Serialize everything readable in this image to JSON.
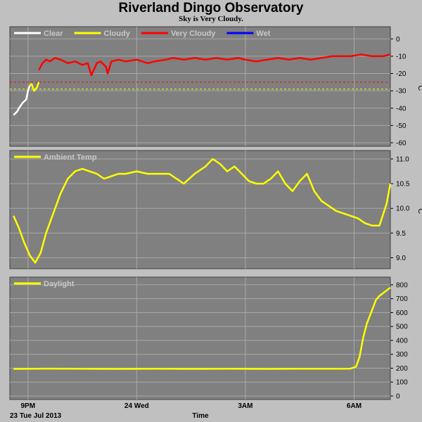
{
  "header": {
    "title": "Riverland Dingo Observatory",
    "subtitle": "Sky is Very Cloudy."
  },
  "footer": {
    "date_label": "23 Tue Jul 2013",
    "axis_title": "Time"
  },
  "colors": {
    "background": "#c0c0c0",
    "panel": "#808080",
    "clear": "#ffffff",
    "cloudy": "#ffff00",
    "very_cloudy": "#ff0000",
    "wet": "#0000ff",
    "ambient": "#ffff00",
    "daylight": "#ffff00"
  },
  "chart_data": [
    {
      "type": "line",
      "title": "",
      "ylabel": "°C",
      "ylim": [
        -60,
        5
      ],
      "yticks": [
        0,
        -10,
        -20,
        -30,
        -40,
        -50,
        -60
      ],
      "xlim": [
        20.5,
        31.0
      ],
      "x_ticks": [
        {
          "x": 21,
          "label": "9PM"
        },
        {
          "x": 24,
          "label": "24 Wed"
        },
        {
          "x": 27,
          "label": "3AM"
        },
        {
          "x": 30,
          "label": "6AM"
        }
      ],
      "grid": true,
      "legend": [
        {
          "name": "Clear",
          "color": "#ffffff"
        },
        {
          "name": "Cloudy",
          "color": "#ffff00"
        },
        {
          "name": "Very Cloudy",
          "color": "#ff0000"
        },
        {
          "name": "Wet",
          "color": "#0000ff"
        }
      ],
      "thresholds": [
        {
          "y": -25,
          "color": "#ff0000"
        },
        {
          "y": -29,
          "color": "#ffff00"
        }
      ],
      "series": [
        {
          "name": "Clear",
          "color": "#ffffff",
          "x": [
            20.6,
            20.7,
            20.75,
            20.85,
            20.95,
            21.0,
            21.05
          ],
          "y": [
            -44,
            -42,
            -40,
            -37,
            -35,
            -30,
            -27
          ]
        },
        {
          "name": "Cloudy",
          "color": "#ffff00",
          "x": [
            21.05,
            21.1,
            21.17,
            21.25,
            21.3
          ],
          "y": [
            -27,
            -26,
            -30,
            -28,
            -25
          ]
        },
        {
          "name": "Very Cloudy",
          "color": "#ff0000",
          "x": [
            21.3,
            21.4,
            21.5,
            21.6,
            21.75,
            21.9,
            22.1,
            22.3,
            22.5,
            22.65,
            22.75,
            22.9,
            23.0,
            23.15,
            23.2,
            23.3,
            23.5,
            23.7,
            24.0,
            24.3,
            24.5,
            24.8,
            25.0,
            25.3,
            25.6,
            25.9,
            26.2,
            26.5,
            26.8,
            27.0,
            27.3,
            27.6,
            27.9,
            28.2,
            28.5,
            28.8,
            29.1,
            29.4,
            29.7,
            29.9,
            30.2,
            30.5,
            30.8,
            31.0
          ],
          "y": [
            -18,
            -14,
            -12,
            -13,
            -11,
            -12,
            -14,
            -13,
            -15,
            -14,
            -21,
            -14,
            -13,
            -16,
            -20,
            -13,
            -12,
            -13,
            -12,
            -14,
            -13,
            -12,
            -11,
            -12,
            -11,
            -12,
            -11,
            -12,
            -11,
            -12,
            -13,
            -12,
            -11,
            -12,
            -11,
            -12,
            -11,
            -10,
            -10,
            -10,
            -9,
            -10,
            -10,
            -9
          ]
        }
      ]
    },
    {
      "type": "line",
      "title": "",
      "ylabel": "°C",
      "ylim": [
        8.85,
        11.1
      ],
      "yticks": [
        9.0,
        9.5,
        10.0,
        10.5,
        11.0
      ],
      "xlim": [
        20.5,
        31.0
      ],
      "x_ticks": [
        {
          "x": 21,
          "label": "9PM"
        },
        {
          "x": 24,
          "label": "24 Wed"
        },
        {
          "x": 27,
          "label": "3AM"
        },
        {
          "x": 30,
          "label": "6AM"
        }
      ],
      "grid": true,
      "legend": [
        {
          "name": "Ambient Temp",
          "color": "#ffff00"
        }
      ],
      "series": [
        {
          "name": "Ambient Temp",
          "color": "#ffff00",
          "x": [
            20.6,
            20.75,
            20.9,
            21.05,
            21.2,
            21.35,
            21.5,
            21.7,
            21.9,
            22.1,
            22.3,
            22.5,
            22.7,
            22.9,
            23.1,
            23.3,
            23.5,
            23.7,
            24.0,
            24.3,
            24.6,
            24.9,
            25.1,
            25.3,
            25.6,
            25.9,
            26.1,
            26.3,
            26.5,
            26.7,
            26.9,
            27.1,
            27.3,
            27.5,
            27.7,
            27.9,
            28.1,
            28.3,
            28.5,
            28.7,
            28.9,
            29.1,
            29.3,
            29.5,
            29.7,
            29.9,
            30.1,
            30.3,
            30.5,
            30.7,
            30.9,
            31.0
          ],
          "y": [
            9.85,
            9.6,
            9.3,
            9.05,
            8.9,
            9.1,
            9.5,
            9.9,
            10.3,
            10.6,
            10.75,
            10.8,
            10.75,
            10.7,
            10.6,
            10.65,
            10.7,
            10.7,
            10.75,
            10.7,
            10.7,
            10.7,
            10.6,
            10.5,
            10.7,
            10.85,
            11.0,
            10.9,
            10.75,
            10.85,
            10.7,
            10.55,
            10.5,
            10.5,
            10.6,
            10.75,
            10.5,
            10.35,
            10.55,
            10.7,
            10.35,
            10.15,
            10.05,
            9.95,
            9.9,
            9.85,
            9.8,
            9.7,
            9.65,
            9.65,
            10.1,
            10.5
          ]
        }
      ]
    },
    {
      "type": "line",
      "title": "",
      "ylabel": "",
      "ylim": [
        0,
        830
      ],
      "yticks": [
        0,
        100,
        200,
        300,
        400,
        500,
        600,
        700,
        800
      ],
      "xlim": [
        20.5,
        31.0
      ],
      "x_ticks": [
        {
          "x": 21,
          "label": "9PM"
        },
        {
          "x": 24,
          "label": "24 Wed"
        },
        {
          "x": 27,
          "label": "3AM"
        },
        {
          "x": 30,
          "label": "6AM"
        }
      ],
      "grid": true,
      "legend": [
        {
          "name": "Daylight",
          "color": "#ffff00"
        }
      ],
      "series": [
        {
          "name": "Daylight",
          "color": "#ffff00",
          "x": [
            20.6,
            21.5,
            22.5,
            23.5,
            24.5,
            25.5,
            26.5,
            27.5,
            28.5,
            29.5,
            29.9,
            30.05,
            30.15,
            30.25,
            30.35,
            30.5,
            30.6,
            30.7,
            30.8,
            30.9,
            31.0
          ],
          "y": [
            195,
            197,
            196,
            195,
            196,
            195,
            196,
            195,
            196,
            196,
            197,
            210,
            280,
            420,
            520,
            620,
            690,
            720,
            740,
            760,
            780
          ]
        }
      ]
    }
  ]
}
